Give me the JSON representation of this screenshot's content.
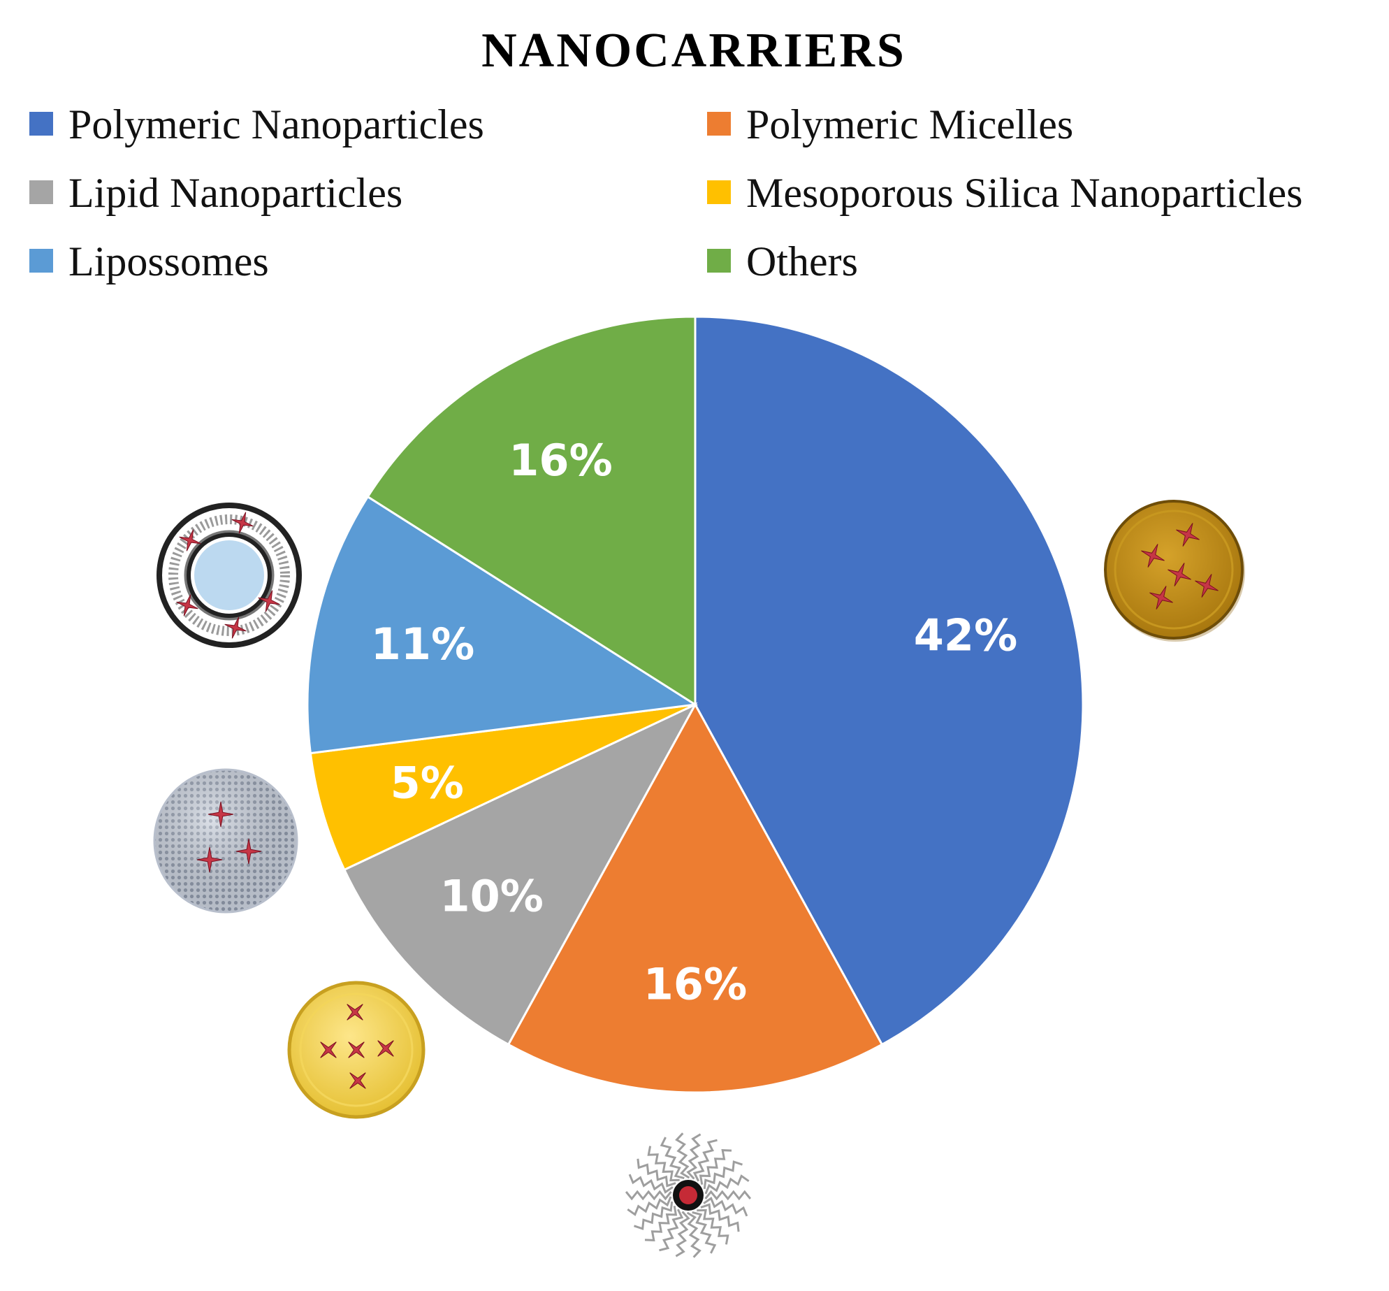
{
  "chart_data": {
    "type": "pie",
    "title": "NANOCARRIERS",
    "unit": "%",
    "start": "12 o'clock",
    "direction": "clockwise",
    "legend_position": "top",
    "slices": [
      {
        "name": "Polymeric Nanoparticles",
        "value": 42,
        "label": "42%",
        "color": "#4472C4"
      },
      {
        "name": "Polymeric Micelles",
        "value": 16,
        "label": "16%",
        "color": "#ED7D31"
      },
      {
        "name": "Lipid Nanoparticles",
        "value": 10,
        "label": "10%",
        "color": "#A5A5A5"
      },
      {
        "name": "Mesoporous Silica Nanoparticles",
        "value": 5,
        "label": "5%",
        "color": "#FFC000"
      },
      {
        "name": "Lipossomes",
        "value": 11,
        "label": "11%",
        "color": "#5B9BD5"
      },
      {
        "name": "Others",
        "value": 16,
        "label": "16%",
        "color": "#70AD47"
      }
    ],
    "legend_order": [
      "Polymeric Nanoparticles",
      "Polymeric Micelles",
      "Lipid Nanoparticles",
      "Mesoporous Silica Nanoparticles",
      "Lipossomes",
      "Others"
    ]
  },
  "illustrations": [
    {
      "name": "polymeric-nanoparticle-icon",
      "slice": "Polymeric Nanoparticles"
    },
    {
      "name": "polymeric-micelle-icon",
      "slice": "Polymeric Micelles"
    },
    {
      "name": "lipid-nanoparticle-icon",
      "slice": "Lipid Nanoparticles"
    },
    {
      "name": "mesoporous-silica-nanoparticle-icon",
      "slice": "Mesoporous Silica Nanoparticles"
    },
    {
      "name": "liposome-icon",
      "slice": "Lipossomes"
    }
  ]
}
